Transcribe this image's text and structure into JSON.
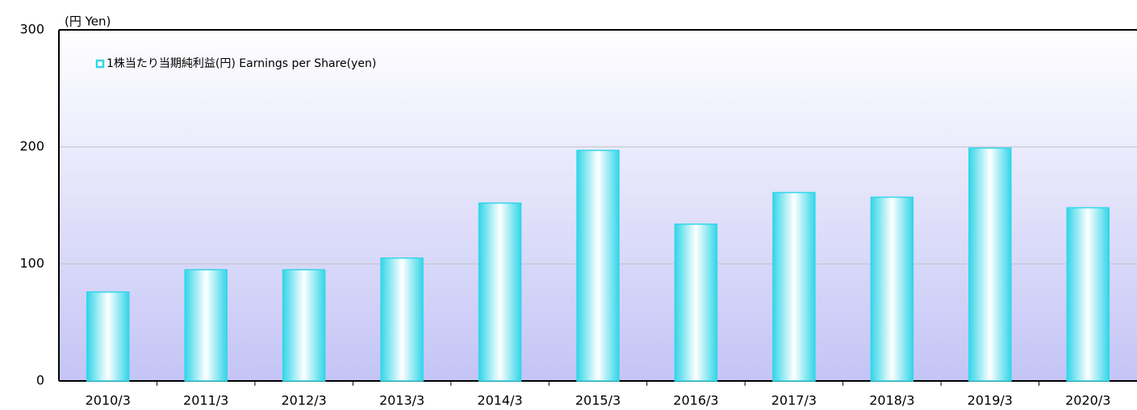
{
  "chart_data": {
    "type": "bar",
    "y_label": "(円 Yen)",
    "categories": [
      "2010/3",
      "2011/3",
      "2012/3",
      "2013/3",
      "2014/3",
      "2015/3",
      "2016/3",
      "2017/3",
      "2018/3",
      "2019/3",
      "2020/3"
    ],
    "series": [
      {
        "name": "1株当たり当期純利益(円) Earnings per Share(yen)",
        "color": "#33d6e8",
        "values": [
          76,
          95,
          95,
          105,
          152,
          197,
          134,
          161,
          157,
          199,
          148
        ]
      }
    ],
    "ylim": [
      0,
      300
    ],
    "yticks": [
      0,
      100,
      200,
      300
    ],
    "grid": true,
    "legend": "top-left"
  }
}
